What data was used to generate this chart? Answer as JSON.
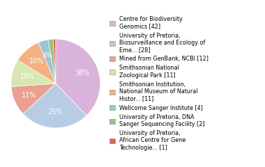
{
  "labels": [
    "Centre for Biodiversity\nGenomics [42]",
    "University of Pretoria,\nBiosurveillance and Ecology of\nEme... [28]",
    "Mined from GenBank, NCBI [12]",
    "Smithsonian National\nZoological Park [11]",
    "Smithsonian Institution,\nNational Museum of Natural\nHistor... [11]",
    "Wellcome Sanger Institute [4]",
    "University of Pretoria, DNA\nSanger Sequencing Facility [2]",
    "University of Pretoria,\nAfrican Centre for Gene\nTechnologie... [1]"
  ],
  "values": [
    42,
    28,
    12,
    11,
    11,
    4,
    2,
    1
  ],
  "colors": [
    "#d9b3d9",
    "#b8cce4",
    "#e8a090",
    "#d6e8b0",
    "#f4b183",
    "#9dc3d4",
    "#92c47d",
    "#e06050"
  ],
  "background_color": "#ffffff",
  "font_size": 7.0,
  "startangle": 90
}
